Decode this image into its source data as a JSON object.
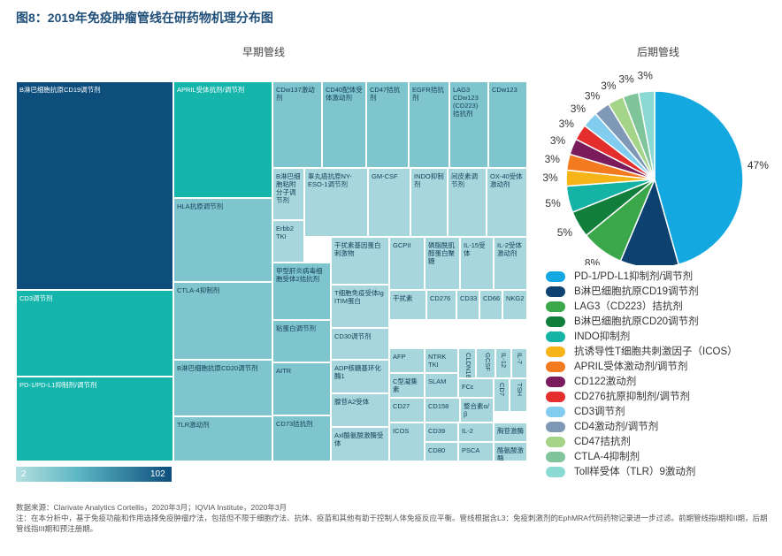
{
  "figure": {
    "title": "图8：2019年免疫肿瘤管线在研药物机理分布图",
    "source": "数据来源：Clarivate Analytics Cortellis，2020年3月；IQVIA Institute，2020年3月",
    "note": "注：在本分析中，基于免疫功能和作用选择免疫肿瘤疗法，包括但不限于细胞疗法、抗体、疫苗和其他有助于控制人体免疫反应平衡。管线根据含L3：免疫刺激剂的EphMRA代码药物记录进一步过滤。前期管线指I期和II期，后期管线指III期和预注册期。"
  },
  "chart_data": [
    {
      "type": "treemap",
      "title": "早期管线",
      "scale": {
        "min": "2",
        "max": "102"
      },
      "colors": {
        "dark": "#0d4e7c",
        "mid": "#16b5ac",
        "light": "#7fc5cd",
        "pale": "#a7d7dd"
      },
      "cells": [
        {
          "label": "B淋巴细胞抗原CD19调节剂",
          "value": 102
        },
        {
          "label": "CD3调节剂",
          "value": 38
        },
        {
          "label": "PD-1/PD-L1抑制剂/调节剂",
          "value": 37
        },
        {
          "label": "APRIL受体抗剂/调节剂",
          "value": 31
        },
        {
          "label": "HLA抗原调节剂",
          "value": 20
        },
        {
          "label": "CTLA-4抑制剂",
          "value": 20
        },
        {
          "label": "B淋巴细胞抗原CD20调节剂",
          "value": 16
        },
        {
          "label": "TLR激动剂",
          "value": 14
        },
        {
          "label": "CDw137激动剂",
          "value": 10
        },
        {
          "label": "CD40配体受体激动剂",
          "value": 9
        },
        {
          "label": "CD47拮抗剂",
          "value": 9
        },
        {
          "label": "EGFR拮抗剂",
          "value": 9
        },
        {
          "label": "LAG3 CDw123 (CD223) 拮抗剂",
          "value": 8
        },
        {
          "label": "CDw123",
          "value": 8
        },
        {
          "label": "B淋巴细胞粘附分子调节剂",
          "value": 5
        },
        {
          "label": "睾丸癌抗原NY-ESO-1调节剂",
          "value": 7
        },
        {
          "label": "GM-CSF",
          "value": 7
        },
        {
          "label": "INDO抑制剂",
          "value": 6
        },
        {
          "label": "间皮素调节剂",
          "value": 6
        },
        {
          "label": "OX-40受体激动剂",
          "value": 6
        },
        {
          "label": "Erbb2 TKI",
          "value": 6
        },
        {
          "label": "甲型肝炎病毒细胞受体2拮抗剂",
          "value": 9
        },
        {
          "label": "粘蛋白调节剂",
          "value": 6
        },
        {
          "label": "AITR",
          "value": 6
        },
        {
          "label": "CD73拮抗剂",
          "value": 6
        },
        {
          "label": "干扰素基因蛋白刺激物",
          "value": 6
        },
        {
          "label": "GCPII",
          "value": 5
        },
        {
          "label": "磷脂酰肌醇蛋白聚糖",
          "value": 5
        },
        {
          "label": "IL-15受体",
          "value": 5
        },
        {
          "label": "IL-2受体激动剂",
          "value": 5
        },
        {
          "label": "T细胞免疫受体Ig ITIM蛋白",
          "value": 5
        },
        {
          "label": "干扰素",
          "value": 4
        },
        {
          "label": "CD276",
          "value": 3
        },
        {
          "label": "CD33",
          "value": 2
        },
        {
          "label": "CD66",
          "value": 2
        },
        {
          "label": "NKG2",
          "value": 2
        },
        {
          "label": "CD30调节剂",
          "value": 4
        },
        {
          "label": "AFP",
          "value": 3
        },
        {
          "label": "NTRK TKI",
          "value": 3
        },
        {
          "label": "CLDN18",
          "value": 3
        },
        {
          "label": "GCSF",
          "value": 2
        },
        {
          "label": "IL-12",
          "value": 2
        },
        {
          "label": "IL-7",
          "value": 2
        },
        {
          "label": "ADP核糖基环化酶1",
          "value": 4
        },
        {
          "label": "C型凝集素",
          "value": 3
        },
        {
          "label": "SLAM",
          "value": 3
        },
        {
          "label": "FCε",
          "value": 2
        },
        {
          "label": "CD7",
          "value": 2
        },
        {
          "label": "TSH",
          "value": 2
        },
        {
          "label": "腺苷A2受体",
          "value": 4
        },
        {
          "label": "CD27",
          "value": 2
        },
        {
          "label": "CD158",
          "value": 2
        },
        {
          "label": "整合素α/β",
          "value": 2
        },
        {
          "label": "ICOS",
          "value": 2
        },
        {
          "label": "CD39",
          "value": 2
        },
        {
          "label": "IL-2",
          "value": 2
        },
        {
          "label": "胸苷激酶",
          "value": 2
        },
        {
          "label": "Axl酪氨酸激酶受体",
          "value": 4
        },
        {
          "label": "CD80",
          "value": 2
        },
        {
          "label": "PSCA",
          "value": 2
        },
        {
          "label": "酪氨酸激酶",
          "value": 2
        }
      ]
    },
    {
      "type": "pie",
      "title": "后期管线",
      "slices": [
        {
          "name": "PD-1/PD-L1抑制剂/调节剂",
          "value": 47,
          "label": "47%",
          "color": "#13a9e0"
        },
        {
          "name": "B淋巴细胞抗原CD19调节剂",
          "value": 11,
          "label": "11%",
          "color": "#0d4270"
        },
        {
          "name": "LAG3（CD223）拮抗剂",
          "value": 8,
          "label": "8%",
          "color": "#3aa84a"
        },
        {
          "name": "B淋巴细胞抗原CD20调节剂",
          "value": 5,
          "label": "5%",
          "color": "#127e3c"
        },
        {
          "name": "INDO抑制剂",
          "value": 5,
          "label": "5%",
          "color": "#14b3a5"
        },
        {
          "name": "抗诱导性T细胞共刺激因子（ICOS）",
          "value": 3,
          "label": "3%",
          "color": "#f6b418"
        },
        {
          "name": "APRIL受体激动剂/调节剂",
          "value": 3,
          "label": "3%",
          "color": "#f47a20"
        },
        {
          "name": "CD122激动剂",
          "value": 3,
          "label": "3%",
          "color": "#7a1b5c"
        },
        {
          "name": "CD276抗原抑制剂/调节剂",
          "value": 3,
          "label": "3%",
          "color": "#e42d2d"
        },
        {
          "name": "CD3调节剂",
          "value": 3,
          "label": "3%",
          "color": "#82cdef"
        },
        {
          "name": "CD4激动剂/调节剂",
          "value": 3,
          "label": "3%",
          "color": "#7f98b6"
        },
        {
          "name": "CD47拮抗剂",
          "value": 3,
          "label": "3%",
          "color": "#a3d488"
        },
        {
          "name": "CTLA-4抑制剂",
          "value": 3,
          "label": "3%",
          "color": "#7fc49a"
        },
        {
          "name": "Toll样受体（TLR）9激动剂",
          "value": 3,
          "label": "3%",
          "color": "#8ad9d2"
        }
      ]
    }
  ]
}
